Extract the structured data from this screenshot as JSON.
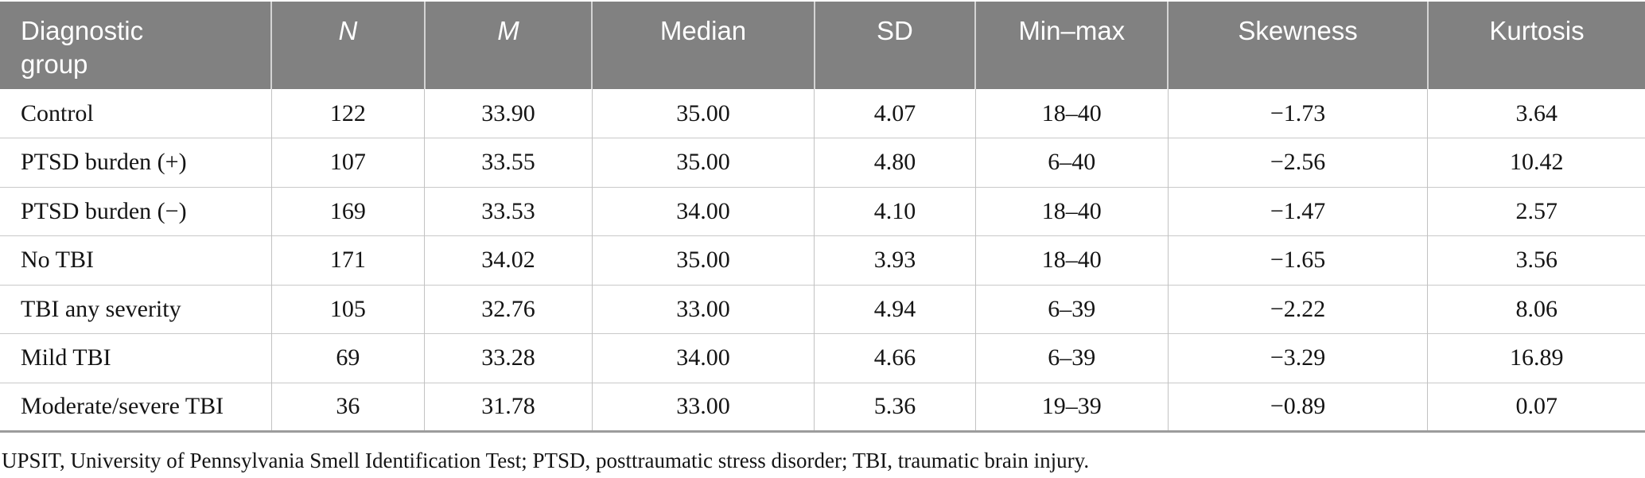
{
  "table": {
    "columns": [
      "Diagnostic group",
      "N",
      "M",
      "Median",
      "SD",
      "Min–max",
      "Skewness",
      "Kurtosis"
    ],
    "rows": [
      [
        "Control",
        "122",
        "33.90",
        "35.00",
        "4.07",
        "18–40",
        "−1.73",
        "3.64"
      ],
      [
        "PTSD burden (+)",
        "107",
        "33.55",
        "35.00",
        "4.80",
        "6–40",
        "−2.56",
        "10.42"
      ],
      [
        "PTSD burden (−)",
        "169",
        "33.53",
        "34.00",
        "4.10",
        "18–40",
        "−1.47",
        "2.57"
      ],
      [
        "No TBI",
        "171",
        "34.02",
        "35.00",
        "3.93",
        "18–40",
        "−1.65",
        "3.56"
      ],
      [
        "TBI any severity",
        "105",
        "32.76",
        "33.00",
        "4.94",
        "6–39",
        "−2.22",
        "8.06"
      ],
      [
        "Mild TBI",
        "69",
        "33.28",
        "34.00",
        "4.66",
        "6–39",
        "−3.29",
        "16.89"
      ],
      [
        "Moderate/severe TBI",
        "36",
        "31.78",
        "33.00",
        "5.36",
        "19–39",
        "−0.89",
        "0.07"
      ]
    ],
    "footnote": "UPSIT, University of Pennsylvania Smell Identification Test; PTSD, posttraumatic stress disorder; TBI, traumatic brain injury.",
    "colors": {
      "header_bg": "#818181",
      "header_text": "#ffffff",
      "body_text": "#141414",
      "row_divider": "#c9c9c9",
      "col_divider": "#c2c2c2",
      "header_divider": "#d4d4d4",
      "bottom_border": "#9c9c9c"
    }
  }
}
